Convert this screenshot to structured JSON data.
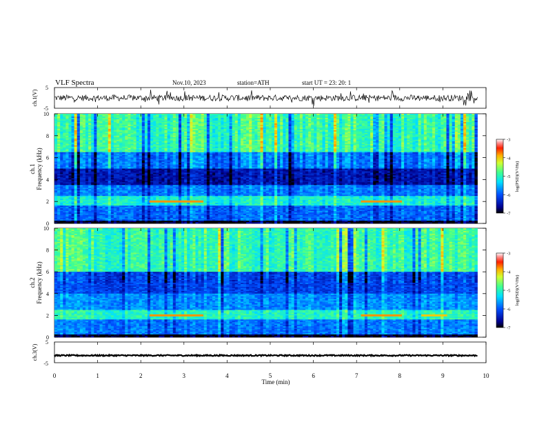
{
  "header": {
    "title": "VLF  Spectra",
    "date": "Nov.10, 2023",
    "station": "station=ATH",
    "start": "start  UT  =   23: 20: 1"
  },
  "chart_data": [
    {
      "type": "line",
      "panel": "ch1-waveform",
      "ylabel": "ch.1(V)",
      "ylim": [
        -5,
        5
      ],
      "yticks": [
        "5",
        "-5"
      ],
      "xlim": [
        0,
        10
      ],
      "trace": {
        "baseline": 0,
        "typical_amplitude": 1.5,
        "spike_amplitude": 4,
        "color": "#000000"
      }
    },
    {
      "type": "heatmap",
      "panel": "ch1-spectrogram",
      "ylabel": "ch.1\nFrequency (kHz)",
      "ylim": [
        0,
        10
      ],
      "yticks": [
        "0",
        "2",
        "4",
        "6",
        "8",
        "10"
      ],
      "xlim": [
        0,
        10
      ],
      "colorbar": {
        "label": "log(PSD)(V²/Hz)",
        "range": [
          -7,
          -3
        ],
        "ticks": [
          "-3",
          "-4",
          "-5",
          "-6",
          "-7"
        ]
      },
      "bands": [
        {
          "f_low": 0,
          "f_high": 0.3,
          "level": -6.9
        },
        {
          "f_low": 0.3,
          "f_high": 1.6,
          "level": -5.9
        },
        {
          "f_low": 1.6,
          "f_high": 2.5,
          "level": -5.1
        },
        {
          "f_low": 2.5,
          "f_high": 3.5,
          "level": -5.8
        },
        {
          "f_low": 3.5,
          "f_high": 5.0,
          "level": -6.5
        },
        {
          "f_low": 5.0,
          "f_high": 6.5,
          "level": -5.8
        },
        {
          "f_low": 6.5,
          "f_high": 10.0,
          "level": -4.9
        }
      ],
      "tones": [
        {
          "t_start": 2.2,
          "t_end": 3.45,
          "freq": 2.0,
          "level": -3.8
        },
        {
          "t_start": 7.1,
          "t_end": 8.05,
          "freq": 2.0,
          "level": -3.8
        }
      ]
    },
    {
      "type": "heatmap",
      "panel": "ch2-spectrogram",
      "ylabel": "ch.2\nFrequency (kHz)",
      "ylim": [
        0,
        10
      ],
      "yticks": [
        "0",
        "2",
        "4",
        "6",
        "8",
        "10"
      ],
      "xlim": [
        0,
        10
      ],
      "colorbar": {
        "label": "log(PSD)(V²/Hz)",
        "range": [
          -7,
          -3
        ],
        "ticks": [
          "-3",
          "-4",
          "-5",
          "-6",
          "-7"
        ]
      },
      "bands": [
        {
          "f_low": 0,
          "f_high": 0.3,
          "level": -6.9
        },
        {
          "f_low": 0.3,
          "f_high": 1.6,
          "level": -5.8
        },
        {
          "f_low": 1.6,
          "f_high": 2.5,
          "level": -5.0
        },
        {
          "f_low": 2.5,
          "f_high": 4.0,
          "level": -5.7
        },
        {
          "f_low": 4.0,
          "f_high": 6.0,
          "level": -6.1
        },
        {
          "f_low": 6.0,
          "f_high": 10.0,
          "level": -4.9
        }
      ],
      "tones": [
        {
          "t_start": 2.2,
          "t_end": 3.45,
          "freq": 2.0,
          "level": -3.8
        },
        {
          "t_start": 7.1,
          "t_end": 8.05,
          "freq": 2.0,
          "level": -3.8
        },
        {
          "t_start": 8.5,
          "t_end": 9.1,
          "freq": 2.0,
          "level": -4.0
        }
      ]
    },
    {
      "type": "line",
      "panel": "ch3-waveform",
      "ylabel": "ch.3(V)",
      "ylim": [
        -5,
        5
      ],
      "yticks": [
        "5",
        "-5"
      ],
      "xlim": [
        0,
        10
      ],
      "trace": {
        "baseline": -1.5,
        "typical_amplitude": 0.3,
        "color": "#000000"
      }
    }
  ],
  "xaxis": {
    "label": "Time  (min)",
    "ticks": [
      "0",
      "1",
      "2",
      "3",
      "4",
      "5",
      "6",
      "7",
      "8",
      "9",
      "10"
    ],
    "data_end": 9.8
  }
}
